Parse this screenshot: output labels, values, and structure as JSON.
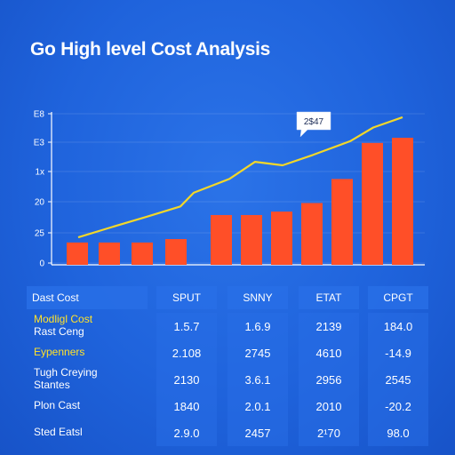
{
  "title": "Go High level Cost Analysis",
  "chart_data": {
    "type": "bar",
    "title": "Go High level Cost Analysis",
    "y_ticks": [
      "0",
      "25",
      "20",
      "1х",
      "Е3",
      "Е8"
    ],
    "bars": [
      6.5,
      6.5,
      6.5,
      7.5,
      14.5,
      14.5,
      15.5,
      18,
      25,
      35.5,
      37
    ],
    "line": [
      8,
      11,
      14,
      17,
      21,
      25,
      30,
      29,
      32,
      36,
      40,
      43
    ],
    "callout": "2$47",
    "colors": {
      "bar": "#ff4f28",
      "line": "#f2d72a",
      "axis": "#ffffff"
    }
  },
  "table": {
    "headers": [
      "Dast Cost",
      "SPUT",
      "SNNY",
      "ETAT",
      "CPGT"
    ],
    "rows": [
      {
        "label": [
          "Modligl Cost",
          "Rast Ceng"
        ],
        "highlight": [
          true,
          false
        ],
        "values": [
          "1.5.7",
          "1.6.9",
          "2139",
          "184.0"
        ]
      },
      {
        "label": [
          "Eypenners"
        ],
        "highlight": [
          true
        ],
        "values": [
          "2.108",
          "2745",
          "4610",
          "-14.9"
        ]
      },
      {
        "label": [
          "Tugh Creying",
          "Stantes"
        ],
        "highlight": [
          false,
          false
        ],
        "values": [
          "2130",
          "3.6.1",
          "2956",
          "2545"
        ]
      },
      {
        "label": [
          "Plon Cast"
        ],
        "highlight": [
          false
        ],
        "values": [
          "1840",
          "2.0.1",
          "2010",
          "-20.2"
        ]
      },
      {
        "label": [
          "Sted Eatsl"
        ],
        "highlight": [
          false
        ],
        "values": [
          "2.9.0",
          "2457",
          "2¹70",
          "98.0"
        ]
      }
    ]
  }
}
